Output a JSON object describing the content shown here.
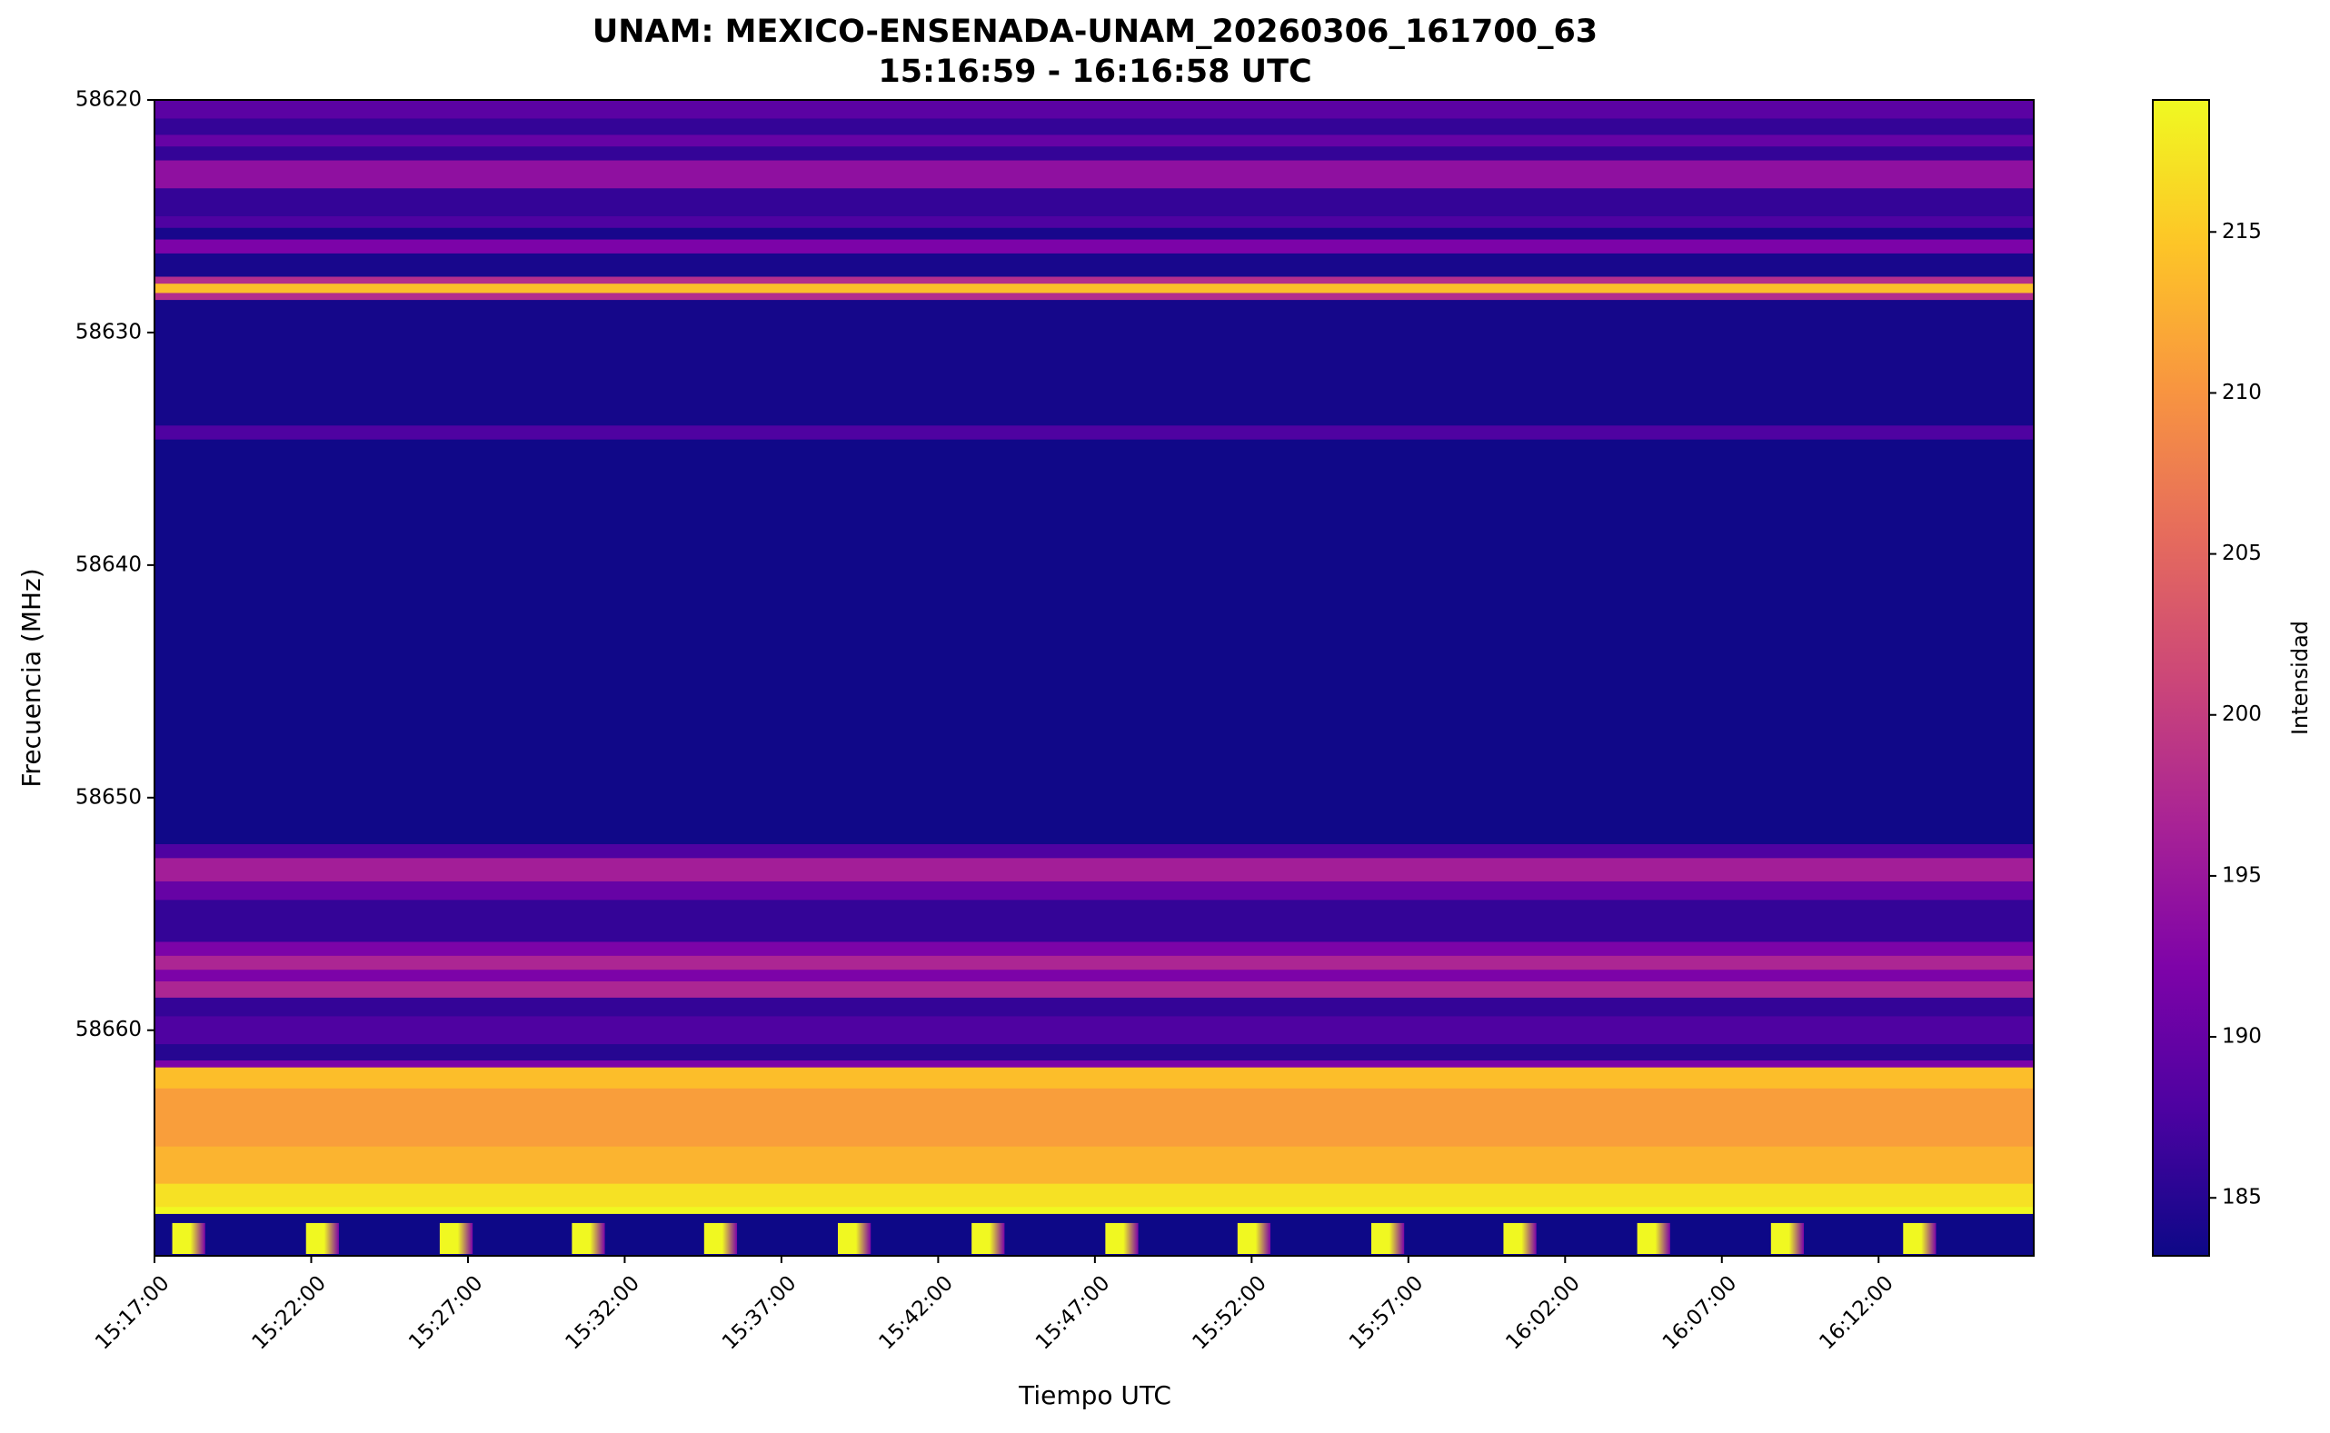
{
  "chart_data": {
    "type": "heatmap",
    "title": "UNAM: MEXICO-ENSENADA-UNAM_20260306_161700_63",
    "subtitle": "15:16:59 - 16:16:58 UTC",
    "xlabel": "Tiempo UTC",
    "ylabel": "Frecuencia (MHz)",
    "colorbar_label": "Intensidad",
    "colormap": "plasma",
    "y_inverted": true,
    "xlim": [
      55020,
      58617
    ],
    "xticks": [
      {
        "value": 55020,
        "label": "15:17:00"
      },
      {
        "value": 55320,
        "label": "15:22:00"
      },
      {
        "value": 55620,
        "label": "15:27:00"
      },
      {
        "value": 55920,
        "label": "15:32:00"
      },
      {
        "value": 56220,
        "label": "15:37:00"
      },
      {
        "value": 56520,
        "label": "15:42:00"
      },
      {
        "value": 56820,
        "label": "15:47:00"
      },
      {
        "value": 57120,
        "label": "15:52:00"
      },
      {
        "value": 57420,
        "label": "15:57:00"
      },
      {
        "value": 57720,
        "label": "16:02:00"
      },
      {
        "value": 58020,
        "label": "16:07:00"
      },
      {
        "value": 58320,
        "label": "16:12:00"
      }
    ],
    "ylim": [
      58620,
      58669.7
    ],
    "yticks": [
      58620,
      58630,
      58640,
      58650,
      58660
    ],
    "clim": [
      183.2,
      219.1
    ],
    "cticks": [
      185,
      190,
      195,
      200,
      205,
      210,
      215
    ],
    "frequency_bins": [
      58620,
      58620.8,
      58621.5,
      58622,
      58622.6,
      58623.8,
      58625,
      58625.5,
      58626,
      58626.6,
      58627.6,
      58627.9,
      58628.3,
      58628.6,
      58634,
      58634.6,
      58652,
      58652.6,
      58653.6,
      58654.4,
      58656.2,
      58656.8,
      58657.4,
      58657.9,
      58658.6,
      58659.4,
      58660.6,
      58661.3,
      58661.6,
      58662.5,
      58665,
      58666.6,
      58667.6,
      58667.9,
      58669.7
    ],
    "intensity": [
      189,
      186,
      190,
      186,
      194,
      186,
      188,
      184,
      192,
      184,
      198,
      214,
      198,
      183.8,
      188,
      183.4,
      188,
      196,
      190,
      186,
      192,
      197,
      192,
      197,
      186,
      188,
      185,
      192,
      214,
      211,
      213,
      217,
      219,
      183.2
    ],
    "pulses": {
      "start": [
        55054,
        55310,
        55566,
        55819,
        56072,
        56328,
        56584,
        56840,
        57093,
        57349,
        57602,
        57858,
        58114,
        58367
      ],
      "duration": 63,
      "peak": 219,
      "tail": 192
    }
  }
}
